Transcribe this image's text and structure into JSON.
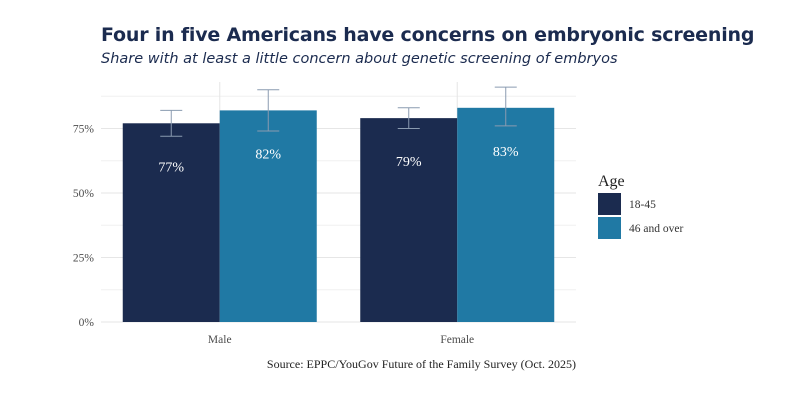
{
  "chart_data": {
    "type": "bar",
    "title": "Four in five Americans have concerns on embryonic screening",
    "subtitle": "Share with at least a little concern about genetic screening of embryos",
    "categories": [
      "Male",
      "Female"
    ],
    "series": [
      {
        "name": "18-45",
        "values": [
          77,
          79
        ],
        "labels": [
          "77%",
          "79%"
        ],
        "error_low": [
          72,
          75
        ],
        "error_high": [
          82,
          83
        ],
        "color": "#1b2b4f"
      },
      {
        "name": "46 and over",
        "values": [
          82,
          83
        ],
        "labels": [
          "82%",
          "83%"
        ],
        "error_low": [
          74,
          76
        ],
        "error_high": [
          90,
          91
        ],
        "color": "#2079a4"
      }
    ],
    "ylim": [
      0,
      93
    ],
    "yticks": [
      0,
      25,
      50,
      75
    ],
    "ytick_labels": [
      "0%",
      "25%",
      "50%",
      "75%"
    ],
    "legend_title": "Age",
    "legend_position": "right",
    "grid": true,
    "source": "Source: EPPC/YouGov Future of the Family Survey (Oct. 2025)"
  }
}
